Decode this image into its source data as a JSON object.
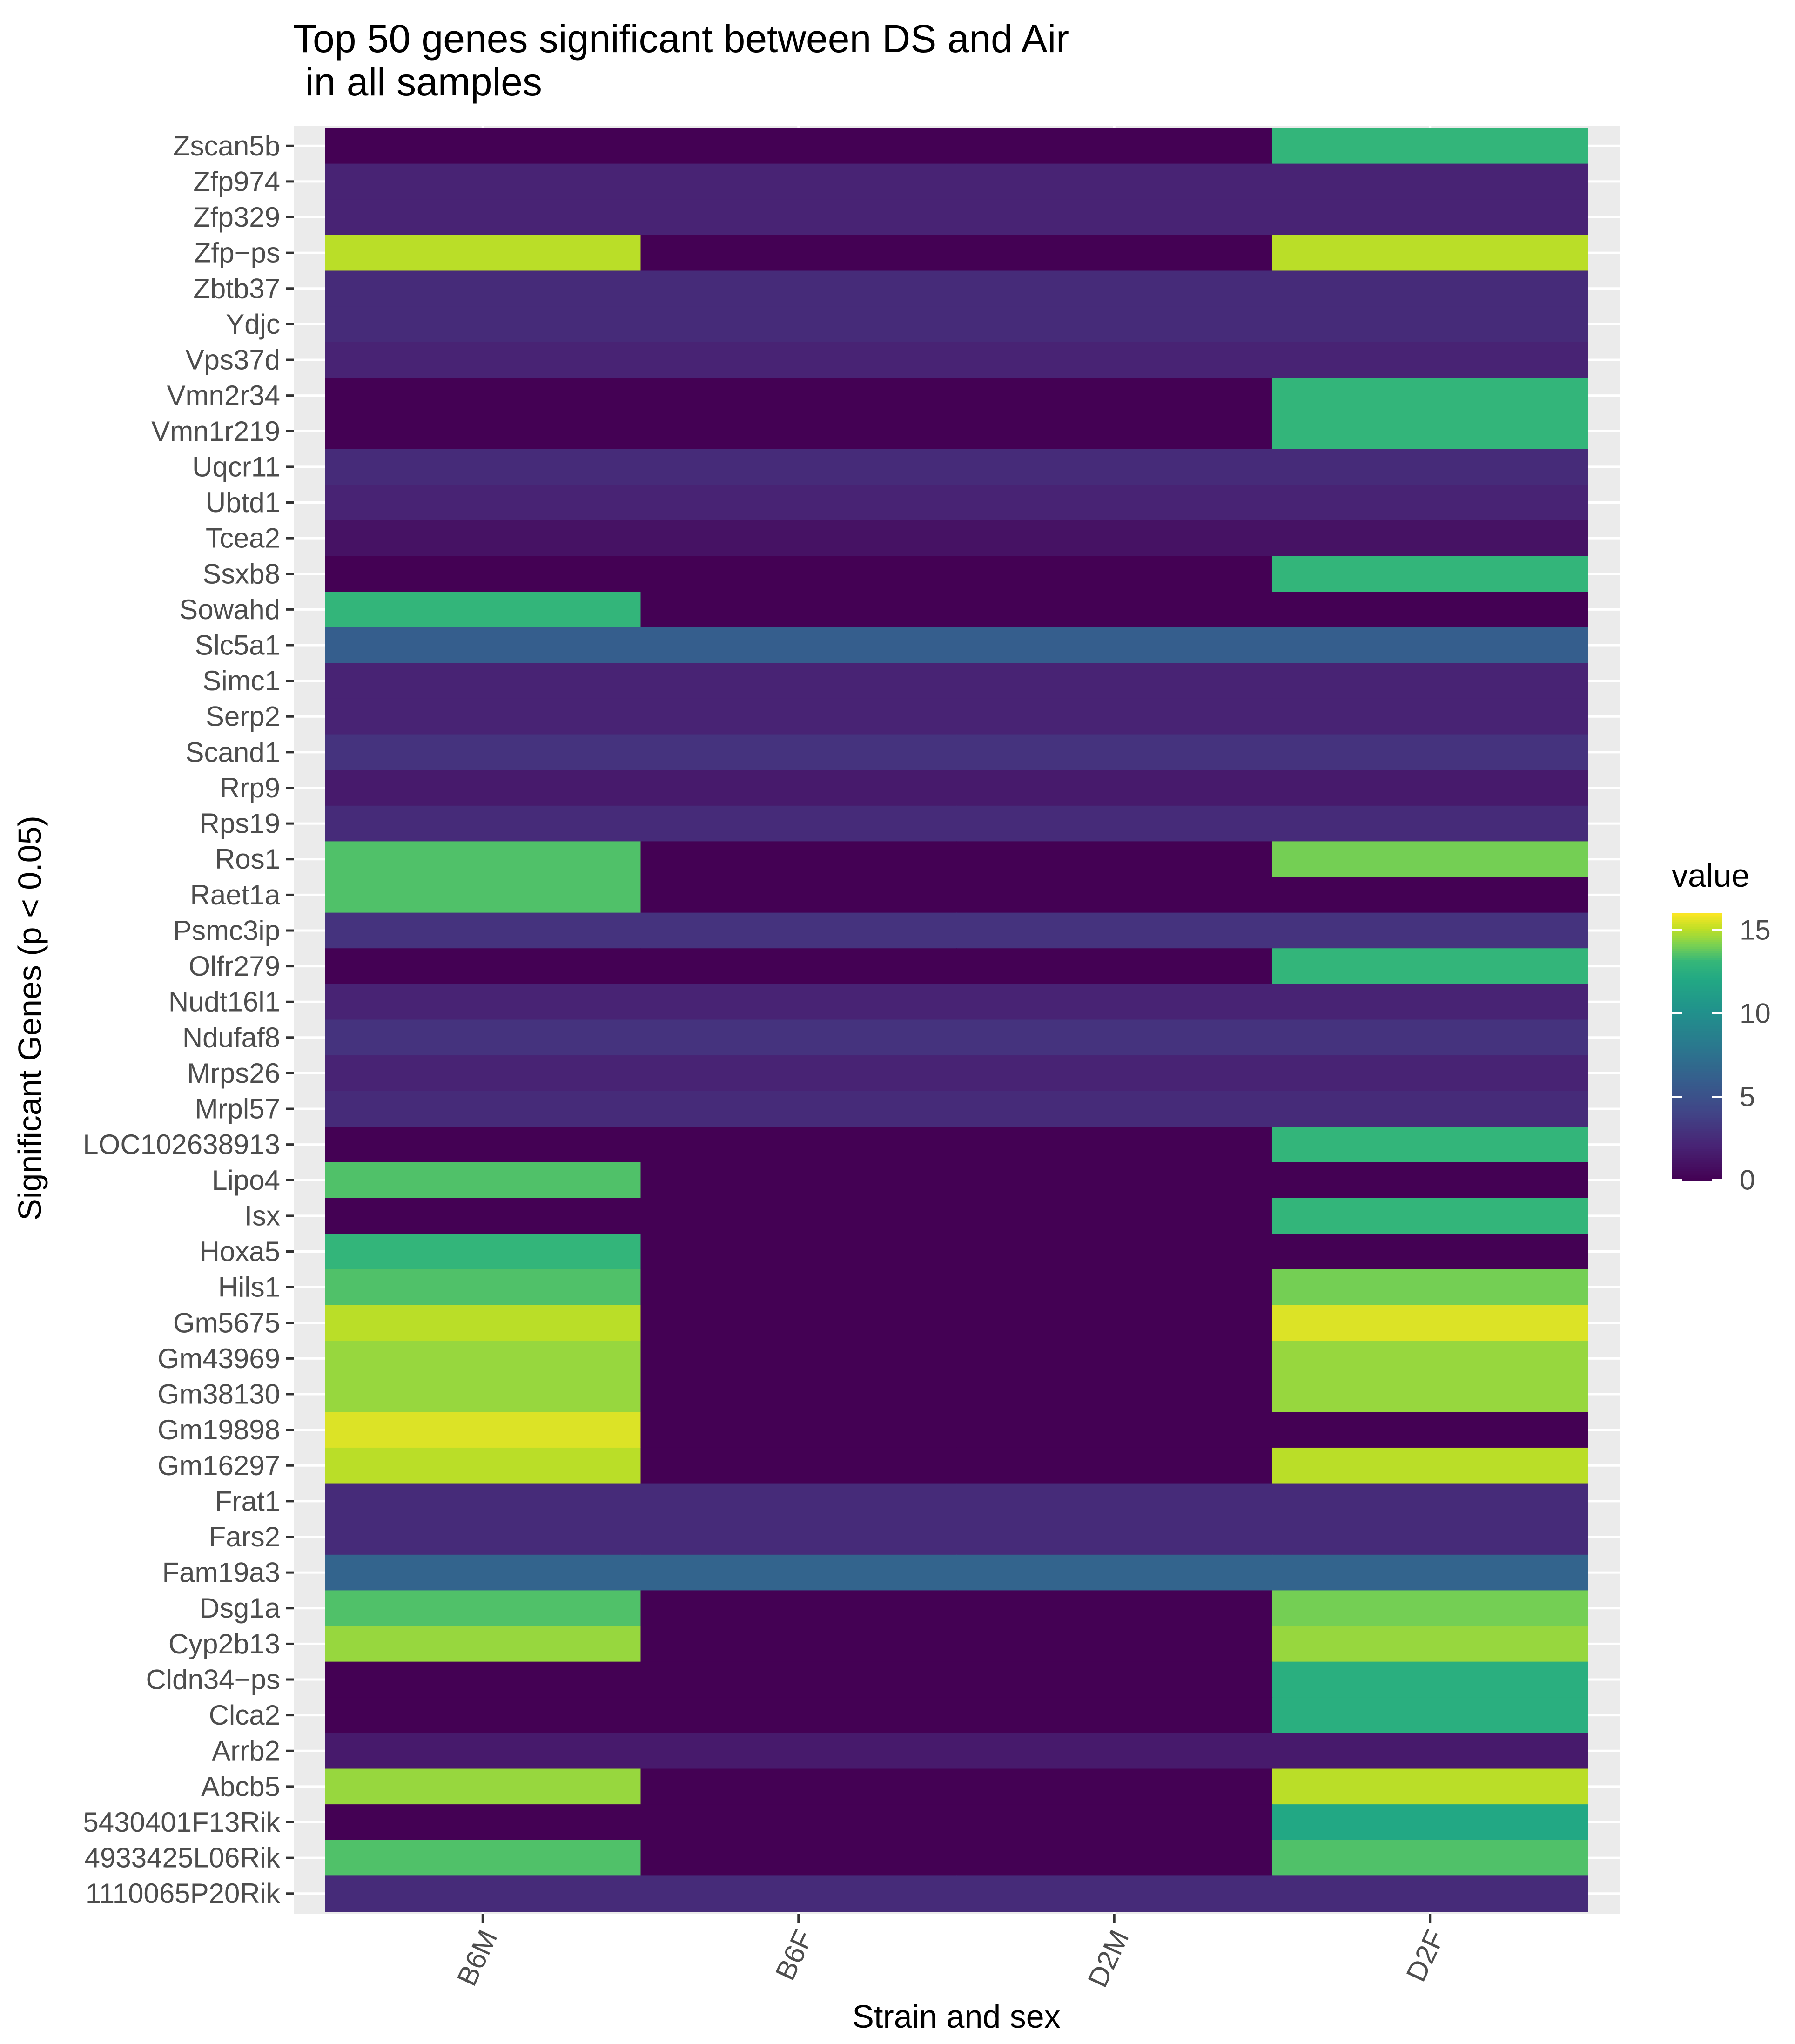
{
  "chart_data": {
    "type": "heatmap",
    "title_lines": [
      "Top 50 genes significant between DS and Air",
      " in all samples"
    ],
    "xlabel": "Strain and sex",
    "ylabel": "Significant Genes (p < 0.05)",
    "columns": [
      "B6M",
      "B6F",
      "D2M",
      "D2F"
    ],
    "rows": [
      {
        "gene": "Zscan5b",
        "values": [
          0,
          0,
          0,
          13
        ]
      },
      {
        "gene": "Zfp974",
        "values": [
          2,
          2,
          2,
          2
        ]
      },
      {
        "gene": "Zfp329",
        "values": [
          2,
          2,
          2,
          2
        ]
      },
      {
        "gene": "Zfp−ps",
        "values": [
          15,
          0,
          0,
          15
        ]
      },
      {
        "gene": "Zbtb37",
        "values": [
          2.5,
          2.5,
          2.5,
          2.5
        ]
      },
      {
        "gene": "Ydjc",
        "values": [
          2.5,
          2.5,
          2.5,
          2.5
        ]
      },
      {
        "gene": "Vps37d",
        "values": [
          2,
          2,
          2,
          2
        ]
      },
      {
        "gene": "Vmn2r34",
        "values": [
          0,
          0,
          0,
          13
        ]
      },
      {
        "gene": "Vmn1r219",
        "values": [
          0,
          0,
          0,
          13
        ]
      },
      {
        "gene": "Uqcr11",
        "values": [
          2.5,
          2.5,
          2.5,
          2.5
        ]
      },
      {
        "gene": "Ubtd1",
        "values": [
          2,
          2,
          2,
          2
        ]
      },
      {
        "gene": "Tcea2",
        "values": [
          1,
          1,
          1,
          1
        ]
      },
      {
        "gene": "Ssxb8",
        "values": [
          0,
          0,
          0,
          13
        ]
      },
      {
        "gene": "Sowahd",
        "values": [
          13,
          0,
          0,
          0
        ]
      },
      {
        "gene": "Slc5a1",
        "values": [
          6,
          6,
          6,
          6
        ]
      },
      {
        "gene": "Simc1",
        "values": [
          2,
          2,
          2,
          2
        ]
      },
      {
        "gene": "Serp2",
        "values": [
          2,
          2,
          2,
          2
        ]
      },
      {
        "gene": "Scand1",
        "values": [
          3,
          3,
          3,
          3
        ]
      },
      {
        "gene": "Rrp9",
        "values": [
          1.5,
          1.5,
          1.5,
          1.5
        ]
      },
      {
        "gene": "Rps19",
        "values": [
          2.5,
          2.5,
          2.5,
          2.5
        ]
      },
      {
        "gene": "Ros1",
        "values": [
          13.5,
          0,
          0,
          14
        ]
      },
      {
        "gene": "Raet1a",
        "values": [
          13.5,
          0,
          0,
          0
        ]
      },
      {
        "gene": "Psmc3ip",
        "values": [
          3,
          3,
          3,
          3
        ]
      },
      {
        "gene": "Olfr279",
        "values": [
          0,
          0,
          0,
          13
        ]
      },
      {
        "gene": "Nudt16l1",
        "values": [
          2,
          2,
          2,
          2
        ]
      },
      {
        "gene": "Ndufaf8",
        "values": [
          3,
          3,
          3,
          3
        ]
      },
      {
        "gene": "Mrps26",
        "values": [
          2,
          2,
          2,
          2
        ]
      },
      {
        "gene": "Mrpl57",
        "values": [
          2.5,
          2.5,
          2.5,
          2.5
        ]
      },
      {
        "gene": "LOC102638913",
        "values": [
          0,
          0,
          0,
          13
        ]
      },
      {
        "gene": "Lipo4",
        "values": [
          13.5,
          0,
          0,
          0
        ]
      },
      {
        "gene": "Isx",
        "values": [
          0,
          0,
          0,
          13
        ]
      },
      {
        "gene": "Hoxa5",
        "values": [
          13,
          0,
          0,
          0
        ]
      },
      {
        "gene": "Hils1",
        "values": [
          13.5,
          0,
          0,
          14
        ]
      },
      {
        "gene": "Gm5675",
        "values": [
          15,
          0,
          0,
          15.5
        ]
      },
      {
        "gene": "Gm43969",
        "values": [
          14.5,
          0,
          0,
          14.5
        ]
      },
      {
        "gene": "Gm38130",
        "values": [
          14.5,
          0,
          0,
          14.5
        ]
      },
      {
        "gene": "Gm19898",
        "values": [
          15.5,
          0,
          0,
          0
        ]
      },
      {
        "gene": "Gm16297",
        "values": [
          15,
          0,
          0,
          15
        ]
      },
      {
        "gene": "Frat1",
        "values": [
          2.5,
          2.5,
          2.5,
          2.5
        ]
      },
      {
        "gene": "Fars2",
        "values": [
          2.5,
          2.5,
          2.5,
          2.5
        ]
      },
      {
        "gene": "Fam19a3",
        "values": [
          6.5,
          6.5,
          6.5,
          6.5
        ]
      },
      {
        "gene": "Dsg1a",
        "values": [
          13.5,
          0,
          0,
          14
        ]
      },
      {
        "gene": "Cyp2b13",
        "values": [
          14.5,
          0,
          0,
          14.5
        ]
      },
      {
        "gene": "Cldn34−ps",
        "values": [
          0,
          0,
          0,
          12.5
        ]
      },
      {
        "gene": "Clca2",
        "values": [
          0,
          0,
          0,
          12.5
        ]
      },
      {
        "gene": "Arrb2",
        "values": [
          1.5,
          1.5,
          1.5,
          1.5
        ]
      },
      {
        "gene": "Abcb5",
        "values": [
          14.5,
          0,
          0,
          15
        ]
      },
      {
        "gene": "5430401F13Rik",
        "values": [
          0,
          0,
          0,
          12
        ]
      },
      {
        "gene": "4933425L06Rik",
        "values": [
          13.5,
          0,
          0,
          13.5
        ]
      },
      {
        "gene": "1110065P20Rik",
        "values": [
          2.5,
          2.5,
          2.5,
          2.5
        ]
      }
    ],
    "legend": {
      "title": "value",
      "ticks": [
        0,
        5,
        10,
        15
      ],
      "position": "right",
      "scale": "viridis",
      "range": [
        0,
        16
      ]
    },
    "colors": {
      "panel_background": "#ebebeb",
      "gridline": "#ffffff",
      "tick_text": "#4d4d4d",
      "title_text": "#000000"
    }
  }
}
